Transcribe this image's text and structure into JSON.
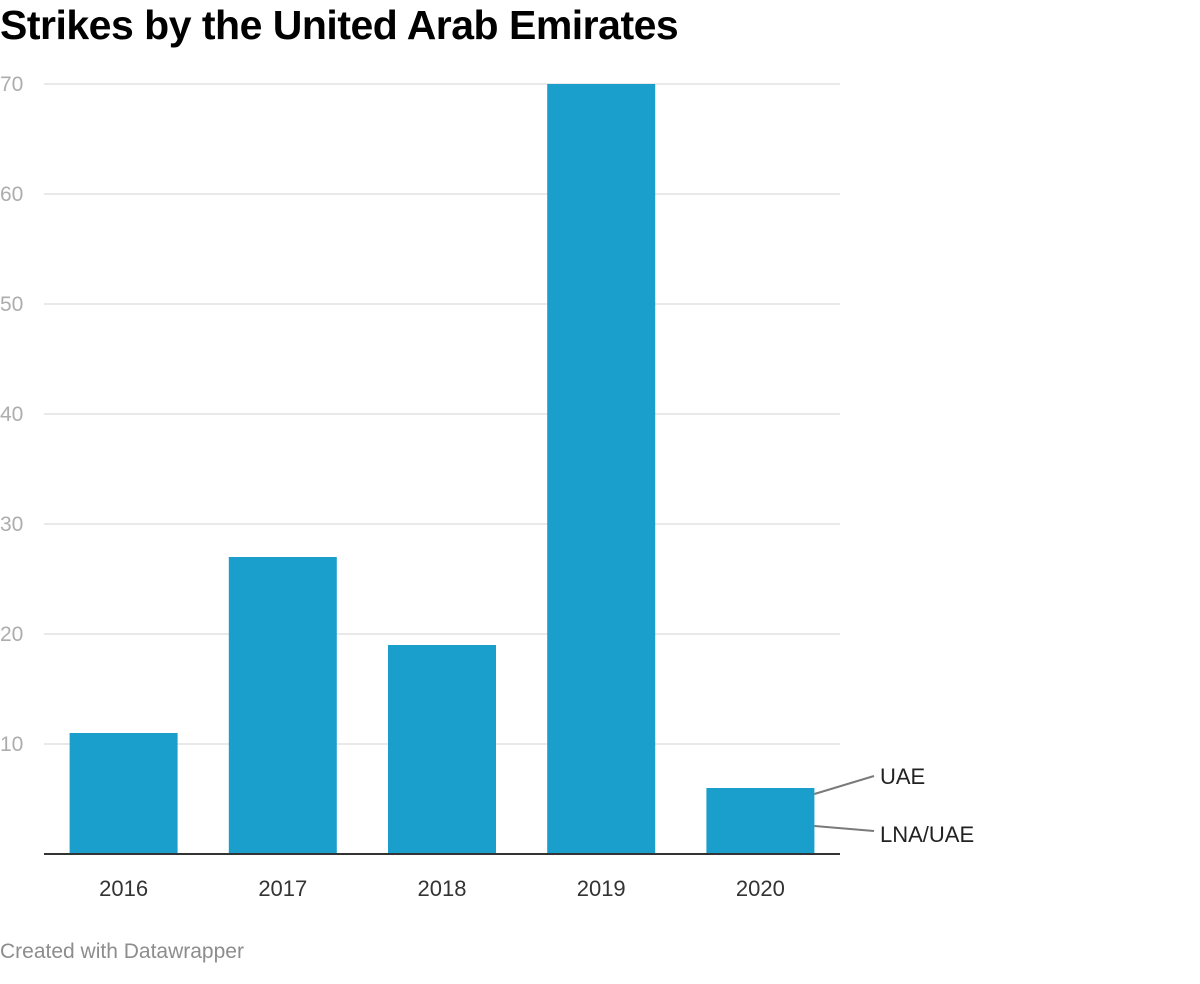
{
  "chart_data": {
    "type": "bar",
    "title": "Strikes by the United Arab Emirates",
    "categories": [
      "2016",
      "2017",
      "2018",
      "2019",
      "2020"
    ],
    "series": [
      {
        "name": "LNA/UAE",
        "values": [
          0,
          0,
          0,
          0,
          0
        ]
      },
      {
        "name": "UAE",
        "values": [
          11,
          27,
          19,
          70,
          6
        ]
      }
    ],
    "values": [
      11,
      27,
      19,
      70,
      6
    ],
    "ylim": [
      0,
      70
    ],
    "yticks": [
      10,
      20,
      30,
      40,
      50,
      60,
      70
    ],
    "xlabel": "",
    "ylabel": "",
    "grid": true,
    "legend": "right, labels pointing to last bar",
    "bar_color": "#1a9fcd",
    "grid_color": "#e2e2e2",
    "tick_color": "#adadad"
  },
  "footer": "Created with Datawrapper"
}
